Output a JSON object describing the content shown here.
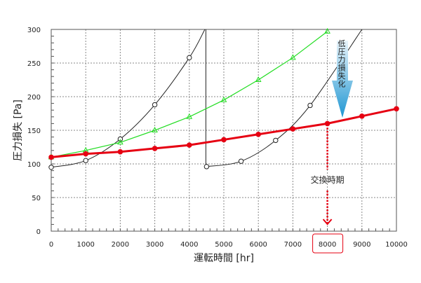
{
  "chart_data": {
    "type": "line",
    "xlabel": "運転時間 [hr]",
    "ylabel": "圧力損失 [Pa]",
    "xlim": [
      0,
      10000
    ],
    "ylim": [
      0,
      300
    ],
    "x_ticks": [
      0,
      1000,
      2000,
      3000,
      4000,
      5000,
      6000,
      7000,
      8000,
      9000,
      10000
    ],
    "y_ticks": [
      0,
      50,
      100,
      150,
      200,
      250,
      300
    ],
    "grid": true,
    "series": [
      {
        "color": "#e60012",
        "marker": "filled-circle",
        "x": [
          0,
          1000,
          2000,
          3000,
          4000,
          5000,
          6000,
          7000,
          8000,
          9000,
          10000
        ],
        "y": [
          110,
          115,
          118,
          123,
          128,
          136,
          144,
          152,
          160,
          171,
          182
        ]
      },
      {
        "color": "#22dd22",
        "marker": "triangle",
        "x": [
          0,
          1000,
          2000,
          3000,
          4000,
          5000,
          6000,
          7000,
          8000
        ],
        "y": [
          110,
          120,
          132,
          150,
          170,
          195,
          225,
          258,
          297
        ]
      },
      {
        "color": "#222222",
        "marker": "open-circle",
        "segments": [
          {
            "x": [
              0,
              1000,
              2000,
              3000,
              4000
            ],
            "y": [
              95,
              105,
              137,
              188,
              258
            ],
            "end": [
              4450,
              300
            ]
          },
          {
            "x": [
              4500,
              5500,
              6500,
              7500
            ],
            "y": [
              96,
              104,
              135,
              187
            ],
            "end": [
              9000,
              300
            ]
          }
        ],
        "drop_at": 4500
      }
    ],
    "annotations": {
      "arrow_label": "低圧力損失化",
      "replacement_label": "交換時期",
      "replacement_x": 8000,
      "highlight_tick": "8000",
      "arrow_color_top": "#e8f4fb",
      "arrow_color_bottom": "#1e96d2"
    }
  }
}
